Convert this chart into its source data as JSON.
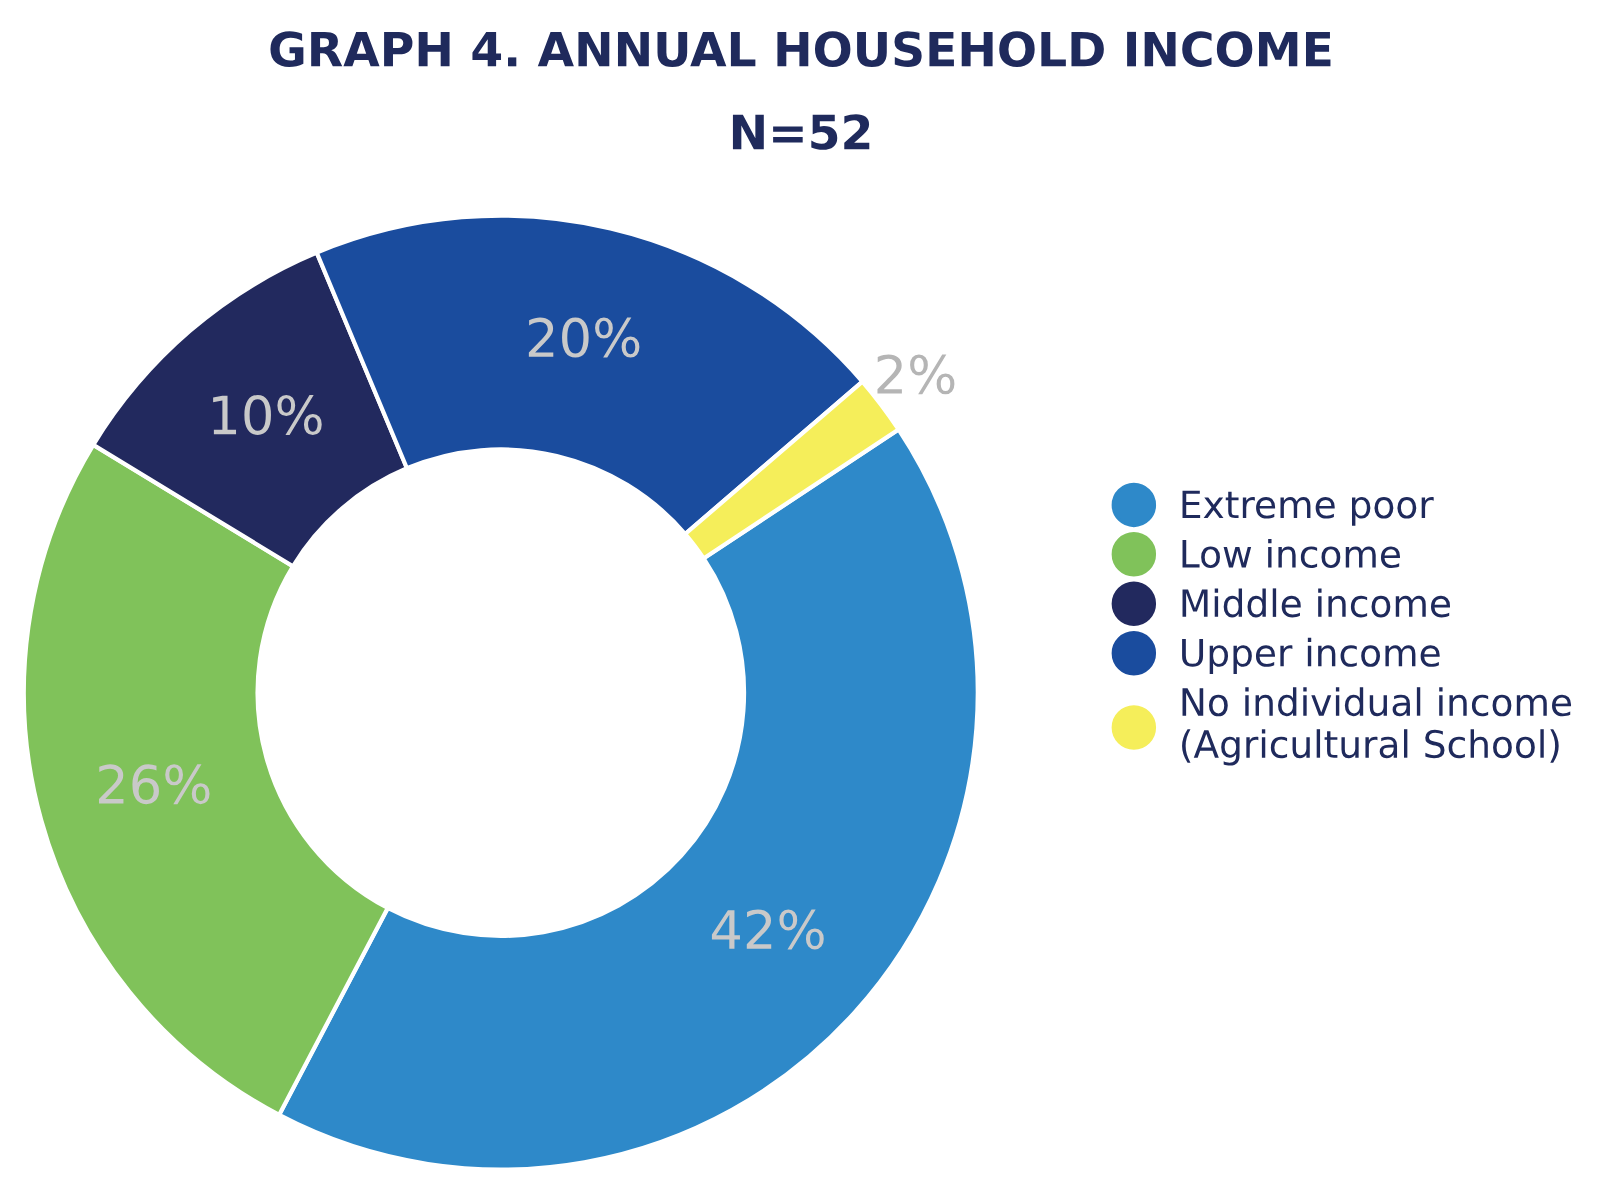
{
  "chart_data": {
    "type": "donut",
    "title": "GRAPH 4. ANNUAL HOUSEHOLD INCOME",
    "subtitle": "N=52",
    "categories": [
      "Extreme poor",
      "Low income",
      "Middle income",
      "Upper income",
      "No individual income\n(Agricultural School)"
    ],
    "values": [
      42,
      26,
      10,
      20,
      2
    ],
    "value_labels": [
      "42%",
      "26%",
      "10%",
      "20%",
      "2%"
    ],
    "colors": [
      "#2e89c9",
      "#80c25a",
      "#22295e",
      "#1a4c9e",
      "#f5ee5a"
    ],
    "legend": "right"
  }
}
